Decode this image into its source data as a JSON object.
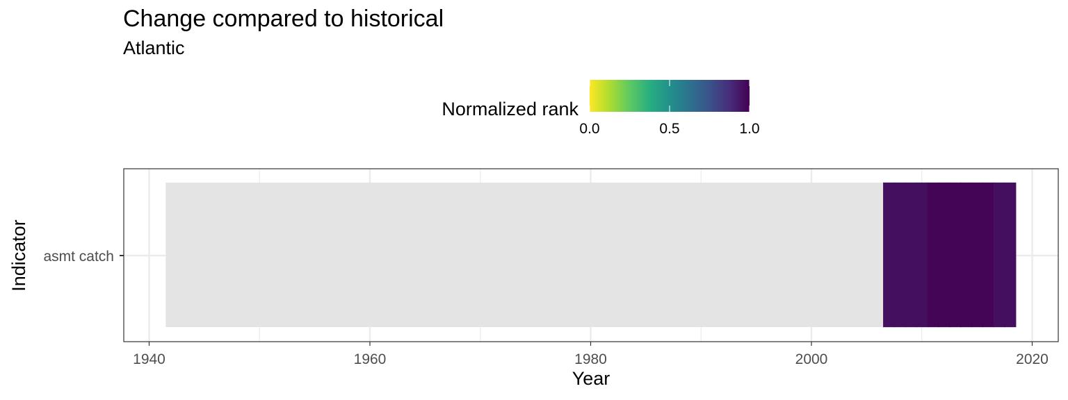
{
  "chart_data": {
    "type": "heatmap",
    "title": "Change compared to historical",
    "subtitle": "Atlantic",
    "xlabel": "Year",
    "ylabel": "Indicator",
    "xlim": [
      1940,
      2020
    ],
    "x_ticks": [
      1940,
      1960,
      1980,
      2000,
      2020
    ],
    "x_tick_labels": [
      "1940",
      "1960",
      "1980",
      "2000",
      "2020"
    ],
    "categories": [
      "asmt catch"
    ],
    "grid": true,
    "legend": {
      "title": "Normalized rank",
      "position": "top",
      "colormap": "viridis (reversed: 0 = yellow, 1 = purple)",
      "range": [
        0,
        1
      ],
      "ticks": [
        0.0,
        0.5,
        1.0
      ],
      "tick_labels": [
        "0.0",
        "0.5",
        "1.0"
      ]
    },
    "series": [
      {
        "indicator": "asmt catch",
        "missing": {
          "start": 1941.5,
          "end": 2006.5,
          "color": "#e4e4e4"
        },
        "values": [
          {
            "year": 2007,
            "rank": 0.96
          },
          {
            "year": 2008,
            "rank": 0.96
          },
          {
            "year": 2009,
            "rank": 0.96
          },
          {
            "year": 2010,
            "rank": 0.96
          },
          {
            "year": 2011,
            "rank": 0.99
          },
          {
            "year": 2012,
            "rank": 0.99
          },
          {
            "year": 2013,
            "rank": 0.99
          },
          {
            "year": 2014,
            "rank": 0.99
          },
          {
            "year": 2015,
            "rank": 0.99
          },
          {
            "year": 2016,
            "rank": 0.99
          },
          {
            "year": 2017,
            "rank": 0.96
          },
          {
            "year": 2018,
            "rank": 0.96
          }
        ]
      }
    ]
  }
}
